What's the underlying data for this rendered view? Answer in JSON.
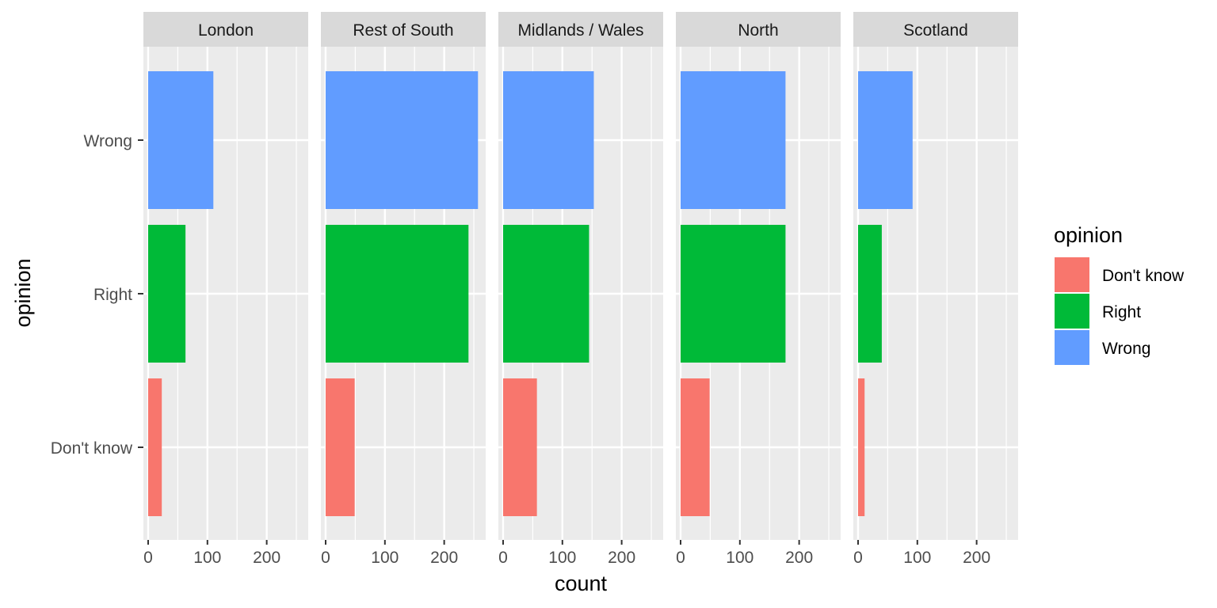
{
  "chart_data": {
    "type": "bar",
    "orientation": "horizontal",
    "facet_by": "region",
    "facets": [
      "London",
      "Rest of South",
      "Midlands / Wales",
      "North",
      "Scotland"
    ],
    "categories": [
      "Don't know",
      "Right",
      "Wrong"
    ],
    "series": [
      {
        "facet": "London",
        "values": [
          23,
          63,
          110
        ]
      },
      {
        "facet": "Rest of South",
        "values": [
          49,
          241,
          257
        ]
      },
      {
        "facet": "Midlands / Wales",
        "values": [
          57,
          145,
          153
        ]
      },
      {
        "facet": "North",
        "values": [
          49,
          177,
          177
        ]
      },
      {
        "facet": "Scotland",
        "values": [
          11,
          40,
          92
        ]
      }
    ],
    "xlabel": "count",
    "ylabel": "opinion",
    "xlim": [
      -8,
      270
    ],
    "xticks": [
      0,
      100,
      200
    ],
    "grid": true,
    "legend": {
      "title": "opinion",
      "position": "right",
      "items": [
        {
          "label": "Don't know",
          "color": "#F8766D"
        },
        {
          "label": "Right",
          "color": "#00BA38"
        },
        {
          "label": "Wrong",
          "color": "#619CFF"
        }
      ]
    },
    "colors": {
      "panel_bg": "#EBEBEB",
      "strip_bg": "#D9D9D9",
      "grid": "#FFFFFF"
    }
  }
}
